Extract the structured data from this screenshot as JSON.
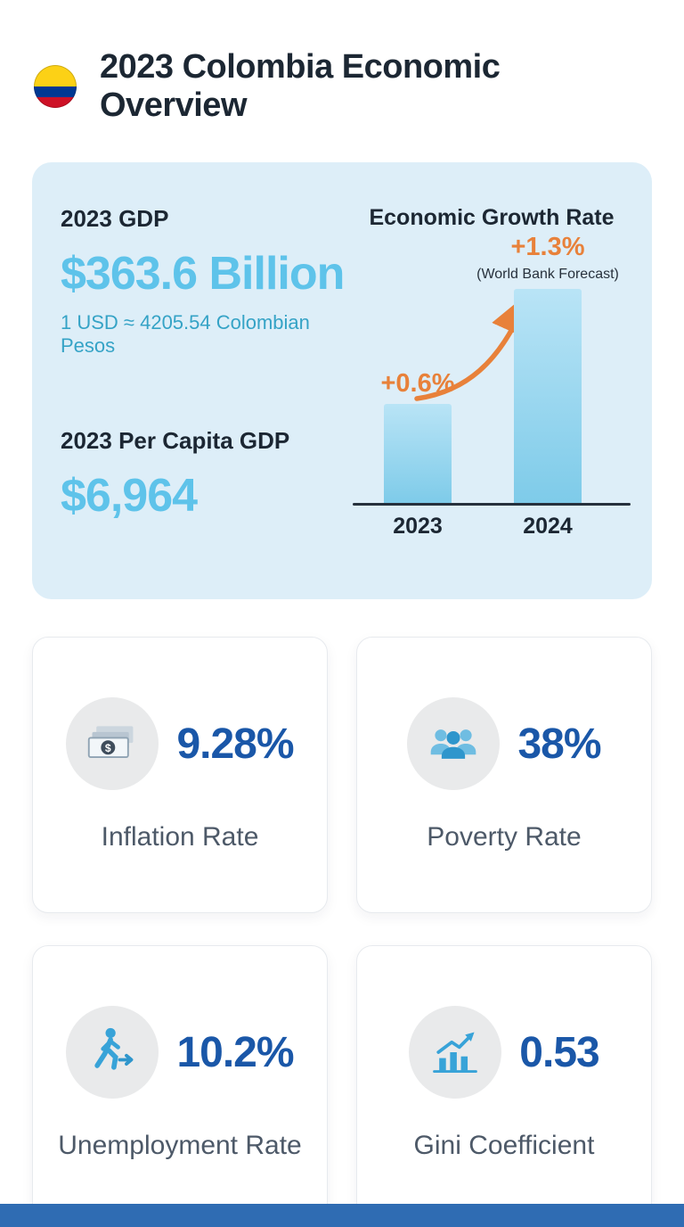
{
  "header": {
    "title": "2023 Colombia Economic Overview",
    "flag_icon": "colombia-flag"
  },
  "gdp_panel": {
    "gdp_label": "2023 GDP",
    "gdp_value": "$363.6 Billion",
    "exchange_rate": "1 USD ≈ 4205.54 Colombian Pesos",
    "per_capita_label": "2023 Per Capita GDP",
    "per_capita_value": "$6,964"
  },
  "chart_data": {
    "type": "bar",
    "title": "Economic Growth Rate",
    "categories": [
      "2023",
      "2024"
    ],
    "values": [
      0.6,
      1.3
    ],
    "data_labels": [
      "+0.6%",
      "+1.3%"
    ],
    "annotation": "(World Bank Forecast)",
    "ylim": [
      0,
      1.3
    ],
    "grid": false,
    "legend": false,
    "bar_color": "#7ecbe9",
    "data_label_color": "#e8813a",
    "arrow": "curved orange arrow from 2023 bar to 2024 bar"
  },
  "cards": [
    {
      "icon": "banknotes-icon",
      "value": "9.28%",
      "label": "Inflation Rate"
    },
    {
      "icon": "people-group-icon",
      "value": "38%",
      "label": "Poverty Rate"
    },
    {
      "icon": "walking-person-icon",
      "value": "10.2%",
      "label": "Unemployment Rate"
    },
    {
      "icon": "growth-chart-icon",
      "value": "0.53",
      "label": "Gini Coefficient"
    }
  ],
  "colors": {
    "title-dark": "#1c2733",
    "panel-bg": "#ddeef8",
    "accent-light-blue": "#5ec3ea",
    "teal-text": "#35a3c6",
    "orange": "#e8813a",
    "value-blue": "#1a57a8",
    "label-gray": "#4d5968",
    "icon-blue": "#38a3d8",
    "icon-circle-bg": "#e9eaeb",
    "bar-blue": "#7ecbe9",
    "footer-blue": "#2f6cb3"
  }
}
